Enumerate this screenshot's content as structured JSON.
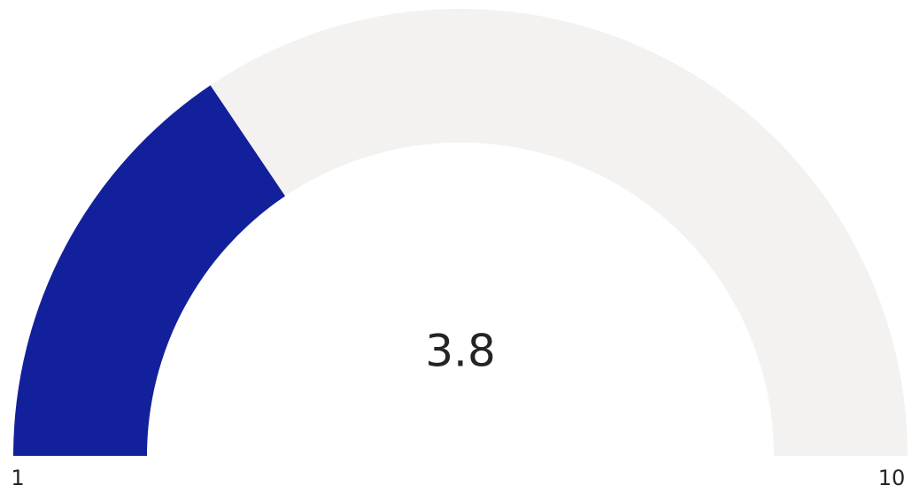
{
  "chart_data": {
    "type": "gauge",
    "value": 3.8,
    "ylim": [
      1,
      10
    ],
    "color": "#13209c",
    "track_color": "#f3f2f1"
  }
}
